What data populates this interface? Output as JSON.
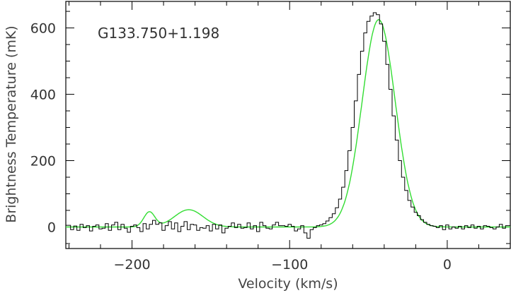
{
  "chart_data": {
    "type": "line",
    "annotation": "G133.750+1.198",
    "xlabel": "Velocity (km/s)",
    "ylabel": "Brightness Temperature (mK)",
    "xlim": [
      -242,
      40
    ],
    "ylim": [
      -65,
      680
    ],
    "xticks_major": [
      -200,
      -100,
      0
    ],
    "yticks_major": [
      0,
      200,
      400,
      600
    ],
    "grid": false,
    "series": [
      {
        "kind": "observed-histogram",
        "color": "#000000",
        "x": [
          -240,
          -238,
          -236,
          -234,
          -232,
          -230,
          -228,
          -226,
          -224,
          -222,
          -220,
          -218,
          -216,
          -214,
          -212,
          -210,
          -208,
          -206,
          -204,
          -202,
          -200,
          -198,
          -196,
          -194,
          -192,
          -190,
          -188,
          -186,
          -184,
          -182,
          -180,
          -178,
          -176,
          -174,
          -172,
          -170,
          -168,
          -166,
          -164,
          -162,
          -160,
          -158,
          -156,
          -154,
          -152,
          -150,
          -148,
          -146,
          -144,
          -142,
          -140,
          -138,
          -136,
          -134,
          -132,
          -130,
          -128,
          -126,
          -124,
          -122,
          -120,
          -118,
          -116,
          -114,
          -112,
          -110,
          -108,
          -106,
          -104,
          -102,
          -100,
          -98,
          -96,
          -94,
          -92,
          -90,
          -88,
          -86,
          -84,
          -82,
          -80,
          -78,
          -76,
          -74,
          -72,
          -70,
          -68,
          -66,
          -64,
          -62,
          -60,
          -58,
          -56,
          -54,
          -52,
          -50,
          -48,
          -46,
          -44,
          -42,
          -40,
          -38,
          -36,
          -34,
          -32,
          -30,
          -28,
          -26,
          -24,
          -22,
          -20,
          -18,
          -16,
          -14,
          -12,
          -10,
          -8,
          -6,
          -4,
          -2,
          0,
          2,
          4,
          6,
          8,
          10,
          12,
          14,
          16,
          18,
          20,
          22,
          24,
          26,
          28,
          30,
          32,
          34,
          36,
          38
        ],
        "y": [
          5,
          -8,
          3,
          -10,
          8,
          -2,
          4,
          -12,
          2,
          6,
          -6,
          -4,
          10,
          -10,
          6,
          14,
          -8,
          8,
          -4,
          -16,
          2,
          6,
          -2,
          -14,
          10,
          -6,
          8,
          20,
          8,
          12,
          -10,
          4,
          16,
          -6,
          12,
          -14,
          2,
          16,
          -8,
          8,
          6,
          -10,
          -2,
          -4,
          4,
          -12,
          8,
          -6,
          6,
          -18,
          -4,
          2,
          12,
          -2,
          8,
          -4,
          -2,
          12,
          -6,
          4,
          -14,
          14,
          4,
          -4,
          -6,
          6,
          14,
          4,
          4,
          2,
          8,
          2,
          -12,
          -6,
          4,
          -18,
          -34,
          -28,
          -6,
          0,
          4,
          2,
          8,
          -4,
          2,
          8,
          -2,
          -4,
          4,
          6,
          10,
          22,
          20,
          30,
          38,
          52,
          60,
          52,
          52,
          46,
          40,
          34,
          30,
          24,
          20,
          16,
          10,
          8,
          6,
          4,
          -4,
          10,
          -6,
          -2,
          -6,
          8,
          -8,
          -2,
          4,
          -8,
          6,
          -6,
          0,
          -4,
          2,
          -6,
          4,
          -2,
          6,
          -4,
          2,
          -6,
          4,
          2,
          -2,
          -6,
          0,
          8,
          -4,
          4
        ],
        "peak_override": [
          {
            "x": -86,
            "y": -8
          },
          {
            "x": -84,
            "y": -2
          },
          {
            "x": -82,
            "y": 4
          },
          {
            "x": -80,
            "y": 6
          },
          {
            "x": -78,
            "y": 10
          },
          {
            "x": -76,
            "y": 18
          },
          {
            "x": -74,
            "y": 28
          },
          {
            "x": -72,
            "y": 40
          },
          {
            "x": -70,
            "y": 58
          },
          {
            "x": -68,
            "y": 84
          },
          {
            "x": -66,
            "y": 120
          },
          {
            "x": -64,
            "y": 170
          },
          {
            "x": -62,
            "y": 230
          },
          {
            "x": -60,
            "y": 300
          },
          {
            "x": -58,
            "y": 380
          },
          {
            "x": -56,
            "y": 460
          },
          {
            "x": -54,
            "y": 530
          },
          {
            "x": -52,
            "y": 585
          },
          {
            "x": -50,
            "y": 620
          },
          {
            "x": -48,
            "y": 636
          },
          {
            "x": -46,
            "y": 646
          },
          {
            "x": -44,
            "y": 640
          },
          {
            "x": -42,
            "y": 612
          },
          {
            "x": -40,
            "y": 560
          },
          {
            "x": -38,
            "y": 490
          },
          {
            "x": -36,
            "y": 415
          },
          {
            "x": -34,
            "y": 335
          },
          {
            "x": -32,
            "y": 262
          },
          {
            "x": -30,
            "y": 200
          },
          {
            "x": -28,
            "y": 150
          },
          {
            "x": -26,
            "y": 110
          },
          {
            "x": -24,
            "y": 80
          },
          {
            "x": -22,
            "y": 60
          },
          {
            "x": -20,
            "y": 44
          },
          {
            "x": -18,
            "y": 34
          },
          {
            "x": -16,
            "y": 22
          },
          {
            "x": -14,
            "y": 14
          },
          {
            "x": -12,
            "y": 8
          },
          {
            "x": -10,
            "y": 4
          },
          {
            "x": -8,
            "y": 2
          }
        ]
      },
      {
        "kind": "gaussian-fit",
        "color": "#33dd33",
        "components": [
          {
            "amplitude": 45,
            "center": -189,
            "sigma": 3.5
          },
          {
            "amplitude": 52,
            "center": -164,
            "sigma": 9
          },
          {
            "amplitude": 625,
            "center": -43.5,
            "sigma": 10.5
          }
        ]
      }
    ]
  }
}
